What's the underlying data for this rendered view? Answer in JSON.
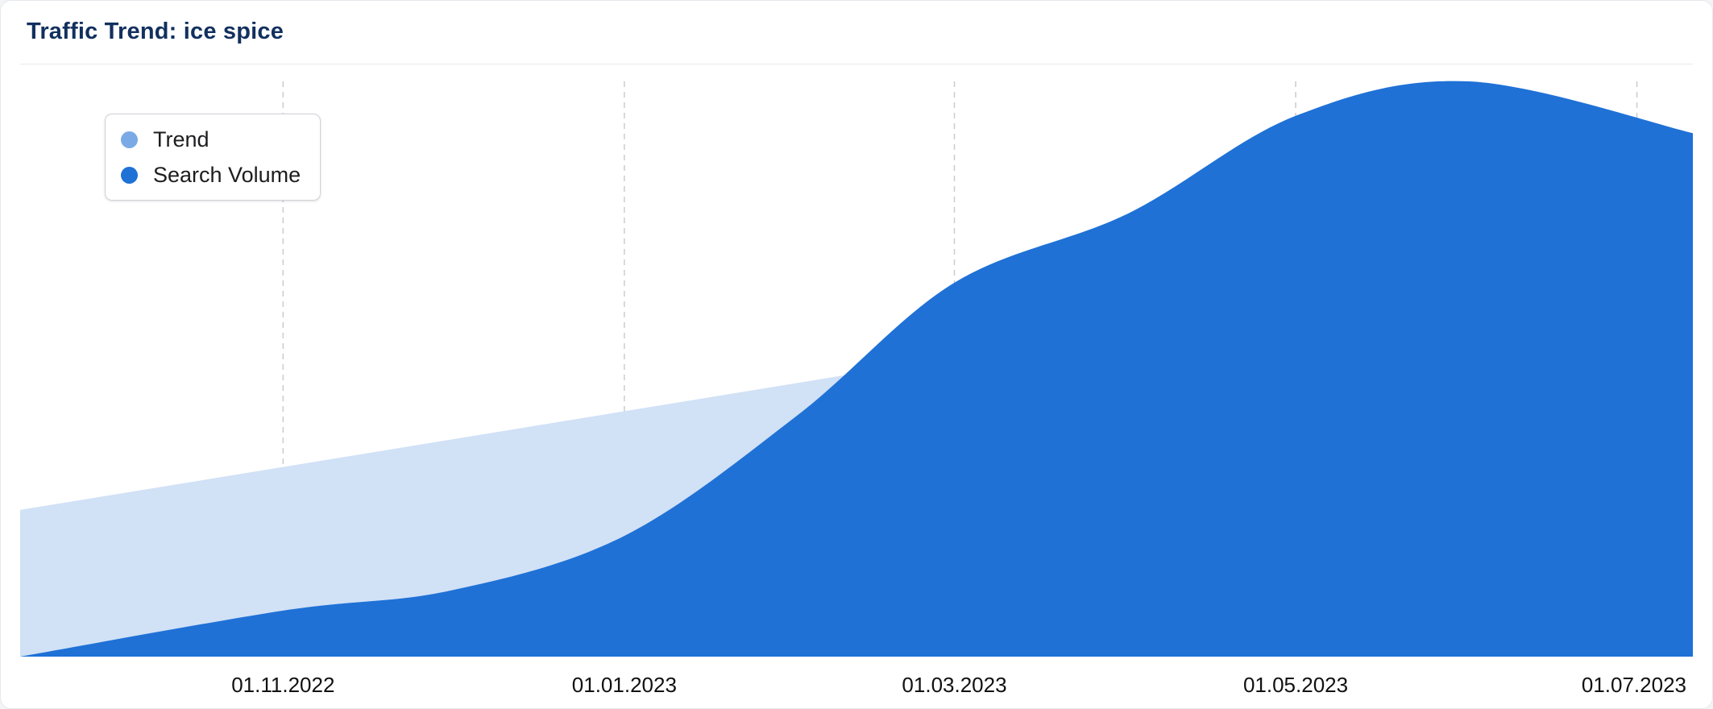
{
  "card": {
    "title": "Traffic Trend: ice spice"
  },
  "colors": {
    "trend": "#d1e1f6",
    "trend_legend": "#7aaae6",
    "search_volume": "#1f71d6",
    "grid": "#c8ccd1",
    "tick_text": "#111111"
  },
  "chart_data": {
    "type": "area",
    "grid": "vertical-dashed",
    "legend_position": "top-left",
    "xlabel": "",
    "ylabel": "",
    "x_ticks": [
      "01.11.2022",
      "01.01.2023",
      "01.03.2023",
      "01.05.2023",
      "01.07.2023"
    ],
    "x_range": [
      "2022-09-15",
      "2023-07-11"
    ],
    "y_range": [
      0,
      100
    ],
    "series": [
      {
        "name": "Trend",
        "type": "area",
        "color": "#d1e1f6",
        "points": [
          {
            "date": "2022-09-15",
            "value": 25.5
          },
          {
            "date": "2023-07-11",
            "value": 73
          }
        ]
      },
      {
        "name": "Search Volume",
        "type": "area",
        "color": "#1f71d6",
        "points": [
          {
            "date": "2022-09-15",
            "value": 0
          },
          {
            "date": "2022-11-01",
            "value": 8
          },
          {
            "date": "2022-12-01",
            "value": 11.5
          },
          {
            "date": "2023-01-01",
            "value": 21
          },
          {
            "date": "2023-02-01",
            "value": 42
          },
          {
            "date": "2023-03-01",
            "value": 65
          },
          {
            "date": "2023-04-01",
            "value": 77
          },
          {
            "date": "2023-05-01",
            "value": 94
          },
          {
            "date": "2023-06-01",
            "value": 100
          },
          {
            "date": "2023-07-11",
            "value": 91
          }
        ]
      }
    ]
  }
}
